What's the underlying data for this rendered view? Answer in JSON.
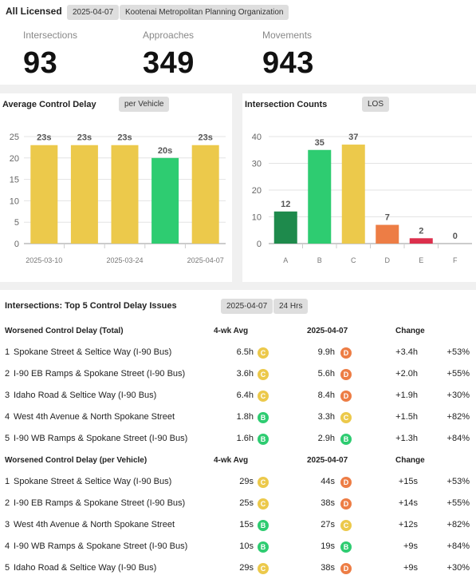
{
  "header": {
    "title": "All Licensed",
    "date": "2025-04-07",
    "org": "Kootenai Metropolitan Planning Organization"
  },
  "summary": [
    {
      "label": "Intersections",
      "value": "93"
    },
    {
      "label": "Approaches",
      "value": "349"
    },
    {
      "label": "Movements",
      "value": "943"
    }
  ],
  "colors": {
    "A": "#1e8a4c",
    "B": "#2ecc71",
    "C": "#ecc94b",
    "D": "#ed7d45",
    "E": "#dc2f4c",
    "F": "#999999"
  },
  "delay_panel": {
    "title": "Average Control Delay",
    "chip": "per Vehicle"
  },
  "counts_panel": {
    "title": "Intersection Counts",
    "chip": "LOS"
  },
  "chart_data": [
    {
      "type": "bar",
      "title": "Average Control Delay",
      "values": [
        23,
        23,
        23,
        20,
        23
      ],
      "data_labels": [
        "23s",
        "23s",
        "23s",
        "20s",
        "23s"
      ],
      "bar_los": [
        "C",
        "C",
        "C",
        "B",
        "C"
      ],
      "x_tick_labels": [
        "2025-03-10",
        "2025-03-24",
        "2025-04-07"
      ],
      "x_tick_positions": [
        0,
        2,
        4
      ],
      "ylim": [
        0,
        25
      ],
      "yticks": [
        0,
        5,
        10,
        15,
        20,
        25
      ],
      "grid": true
    },
    {
      "type": "bar",
      "title": "Intersection Counts",
      "categories": [
        "A",
        "B",
        "C",
        "D",
        "E",
        "F"
      ],
      "values": [
        12,
        35,
        37,
        7,
        2,
        0
      ],
      "ylim": [
        0,
        40
      ],
      "yticks": [
        0,
        10,
        20,
        30,
        40
      ],
      "grid": true
    }
  ],
  "issues": {
    "title": "Intersections: Top 5 Control Delay Issues",
    "date": "2025-04-07",
    "window": "24 Hrs",
    "sections": [
      {
        "header": {
          "name": "Worsened Control Delay (Total)",
          "avg": "4-wk Avg",
          "date": "2025-04-07",
          "change": "Change"
        },
        "rows": [
          {
            "n": "1",
            "name": "Spokane Street & Seltice Way (I-90 Bus)",
            "avg": "6.5h",
            "avg_los": "C",
            "cur": "9.9h",
            "cur_los": "D",
            "chg": "+3.4h",
            "pct": "+53%"
          },
          {
            "n": "2",
            "name": "I-90 EB Ramps & Spokane Street (I-90 Bus)",
            "avg": "3.6h",
            "avg_los": "C",
            "cur": "5.6h",
            "cur_los": "D",
            "chg": "+2.0h",
            "pct": "+55%"
          },
          {
            "n": "3",
            "name": "Idaho Road & Seltice Way (I-90 Bus)",
            "avg": "6.4h",
            "avg_los": "C",
            "cur": "8.4h",
            "cur_los": "D",
            "chg": "+1.9h",
            "pct": "+30%"
          },
          {
            "n": "4",
            "name": "West 4th Avenue & North Spokane Street",
            "avg": "1.8h",
            "avg_los": "B",
            "cur": "3.3h",
            "cur_los": "C",
            "chg": "+1.5h",
            "pct": "+82%"
          },
          {
            "n": "5",
            "name": "I-90 WB Ramps & Spokane Street (I-90 Bus)",
            "avg": "1.6h",
            "avg_los": "B",
            "cur": "2.9h",
            "cur_los": "B",
            "chg": "+1.3h",
            "pct": "+84%"
          }
        ]
      },
      {
        "header": {
          "name": "Worsened Control Delay (per Vehicle)",
          "avg": "4-wk Avg",
          "date": "2025-04-07",
          "change": "Change"
        },
        "rows": [
          {
            "n": "1",
            "name": "Spokane Street & Seltice Way (I-90 Bus)",
            "avg": "29s",
            "avg_los": "C",
            "cur": "44s",
            "cur_los": "D",
            "chg": "+15s",
            "pct": "+53%"
          },
          {
            "n": "2",
            "name": "I-90 EB Ramps & Spokane Street (I-90 Bus)",
            "avg": "25s",
            "avg_los": "C",
            "cur": "38s",
            "cur_los": "D",
            "chg": "+14s",
            "pct": "+55%"
          },
          {
            "n": "3",
            "name": "West 4th Avenue & North Spokane Street",
            "avg": "15s",
            "avg_los": "B",
            "cur": "27s",
            "cur_los": "C",
            "chg": "+12s",
            "pct": "+82%"
          },
          {
            "n": "4",
            "name": "I-90 WB Ramps & Spokane Street (I-90 Bus)",
            "avg": "10s",
            "avg_los": "B",
            "cur": "19s",
            "cur_los": "B",
            "chg": "+9s",
            "pct": "+84%"
          },
          {
            "n": "5",
            "name": "Idaho Road & Seltice Way (I-90 Bus)",
            "avg": "29s",
            "avg_los": "C",
            "cur": "38s",
            "cur_los": "D",
            "chg": "+9s",
            "pct": "+30%"
          }
        ]
      }
    ]
  }
}
